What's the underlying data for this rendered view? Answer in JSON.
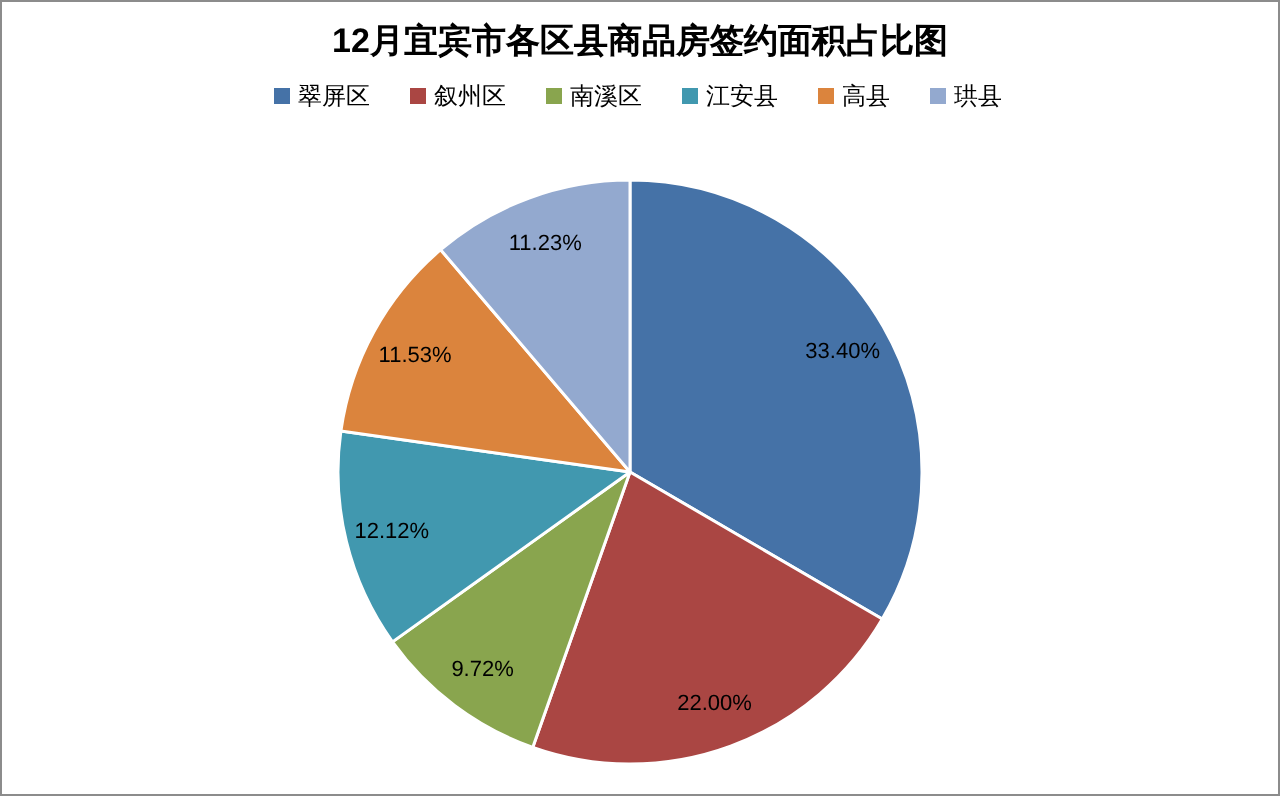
{
  "chart_data": {
    "type": "pie",
    "title": "12月宜宾市各区县商品房签约面积占比图",
    "legend": "top",
    "categories": [
      "翠屏区",
      "叙州区",
      "南溪区",
      "江安县",
      "高县",
      "珙县"
    ],
    "values": [
      33.4,
      22.0,
      9.72,
      12.12,
      11.53,
      11.23
    ],
    "value_labels": [
      "33.40%",
      "22.00%",
      "9.72%",
      "12.12%",
      "11.53%",
      "11.23%"
    ],
    "colors": [
      "#4572a7",
      "#aa4643",
      "#89a54e",
      "#4198af",
      "#db843d",
      "#93a9cf"
    ]
  }
}
